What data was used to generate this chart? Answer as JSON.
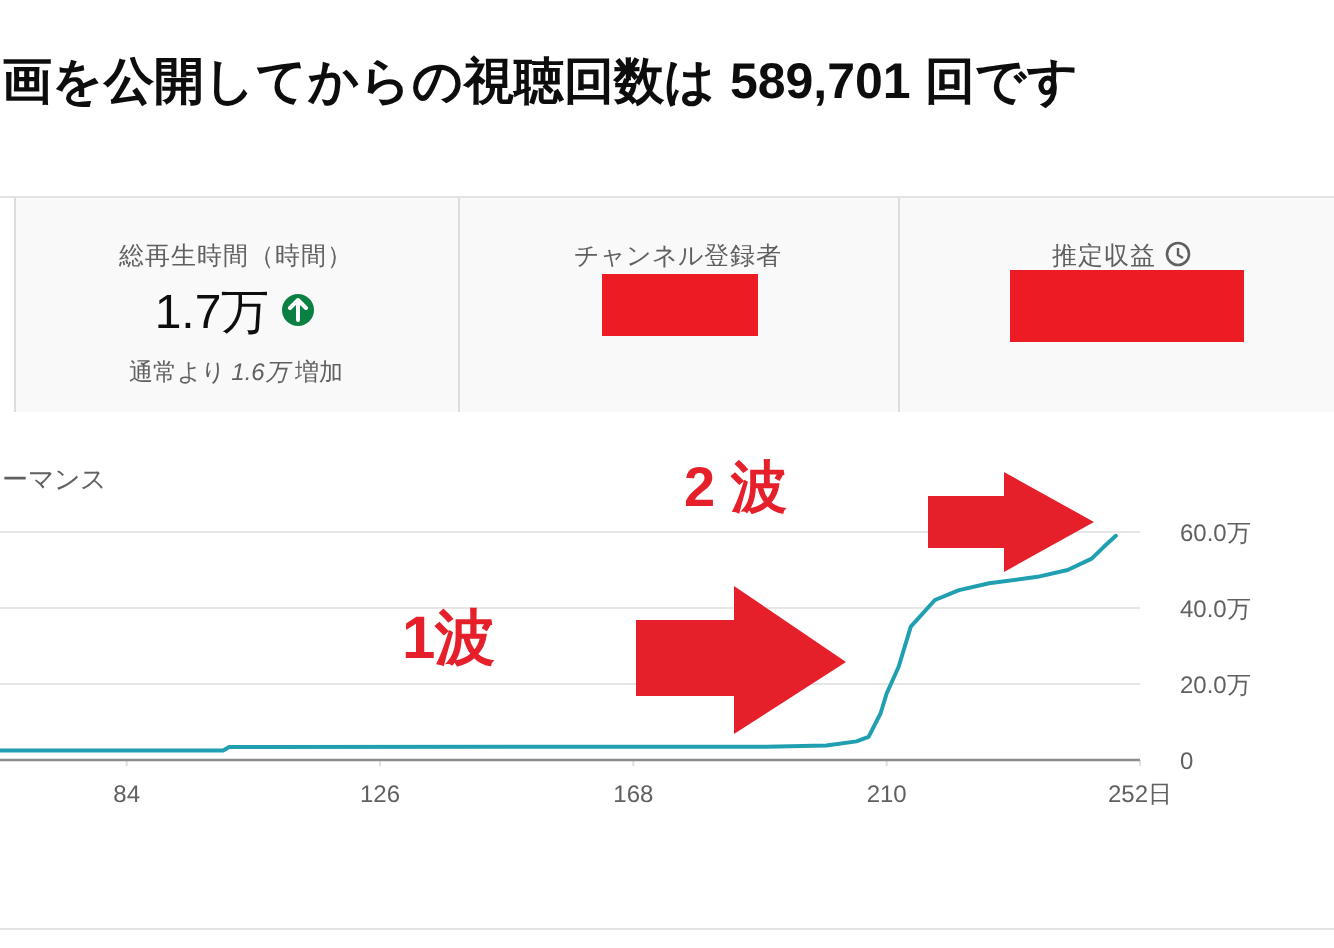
{
  "chart_data": [
    {
      "type": "other",
      "title": "画を公開してからの視聴回数は 589,701 回です",
      "annotations": [
        "総再生時間（時間）",
        "1.7万",
        "通常より *1.6万* 増加",
        "チャンネル登録者",
        "推定収益"
      ]
    },
    {
      "type": "line",
      "title": "ーマンス",
      "x": [
        63,
        100,
        101,
        150,
        190,
        200,
        205,
        207,
        209,
        210,
        212,
        214,
        218,
        222,
        227,
        235,
        240,
        244,
        246,
        248
      ],
      "values": [
        2.5,
        2.5,
        3.4,
        3.5,
        3.5,
        3.8,
        4.9,
        6.1,
        12.3,
        17.5,
        24.6,
        35.1,
        42.1,
        44.7,
        46.5,
        48.2,
        50.0,
        53.0,
        56.1,
        59.0
      ],
      "color": "#1f9fb0",
      "line_style": "solid",
      "xlim": [
        63,
        252
      ],
      "xticks": [
        84,
        126,
        168,
        210,
        {
          "value": 252,
          "label": "252日"
        }
      ],
      "ylim": [
        0,
        60
      ],
      "yticks": [
        0,
        {
          "value": 20,
          "label": "20.0万"
        },
        {
          "value": 40,
          "label": "40.0万"
        },
        {
          "value": 60,
          "label": "60.0万"
        }
      ],
      "grid": "y",
      "annotations": [
        "1波",
        "2 波"
      ]
    }
  ]
}
